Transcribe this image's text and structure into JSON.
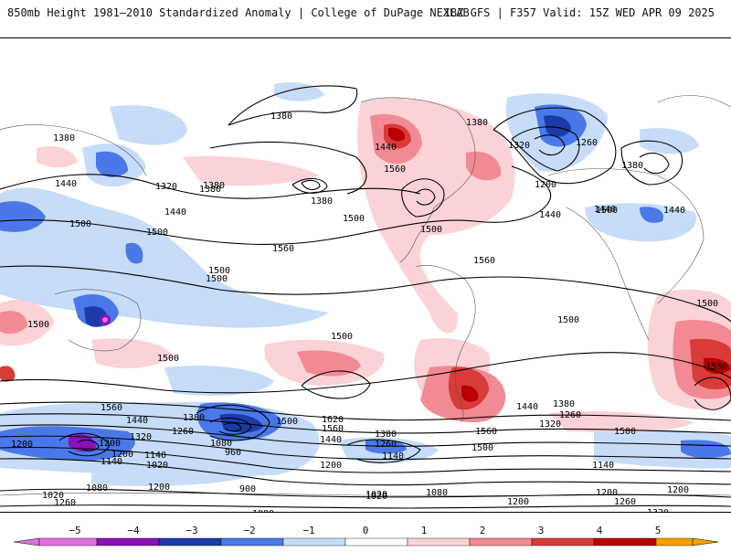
{
  "header": {
    "title_left": "850mb Height 1981–2010 Standardized Anomaly | College of DuPage NEXLAB",
    "title_right": "18Z GFS | F357 Valid: 15Z WED APR 09 2025"
  },
  "colors": {
    "neg5": "#e070e0",
    "neg4": "#8a10b8",
    "neg3": "#1c3aa8",
    "neg2": "#4a78e8",
    "neg1": "#c6dcf8",
    "zero": "#ffffff",
    "pos1": "#fbd2d6",
    "pos2": "#f28a93",
    "pos3": "#d93a3a",
    "pos4": "#b80000",
    "pos5": "#f5a000"
  },
  "colorbar": {
    "labels": [
      "−5",
      "−4",
      "−3",
      "−2",
      "−1",
      "0",
      "1",
      "2",
      "3",
      "4",
      "5"
    ]
  },
  "contour_labels": [
    "1380",
    "1380",
    "1380",
    "1440",
    "1500",
    "1440",
    "1320",
    "1500",
    "1500",
    "1440",
    "1380",
    "1500",
    "1560",
    "1500",
    "1500",
    "1500",
    "1500",
    "1500",
    "1500",
    "1560",
    "1440",
    "1380",
    "1260",
    "1200",
    "1080",
    "960",
    "1020",
    "1140",
    "1200",
    "1320",
    "1620",
    "1560",
    "1500",
    "1440",
    "1380",
    "1260",
    "1200",
    "1140",
    "1020",
    "900",
    "1080",
    "1200",
    "1260",
    "1320",
    "1560",
    "1500",
    "1440",
    "1380",
    "1320",
    "1260",
    "1200",
    "1140",
    "1080",
    "1020",
    "1140",
    "1200",
    "1260",
    "1320",
    "1500",
    "1560",
    "1440",
    "1380",
    "1320",
    "1260",
    "1200",
    "1140",
    "1380",
    "1440",
    "1500",
    "1560",
    "1440",
    "1200",
    "1320",
    "1560",
    "1500",
    "1320",
    "1380",
    "1260",
    "1200",
    "1140",
    "1020",
    "1080",
    "1200"
  ]
}
